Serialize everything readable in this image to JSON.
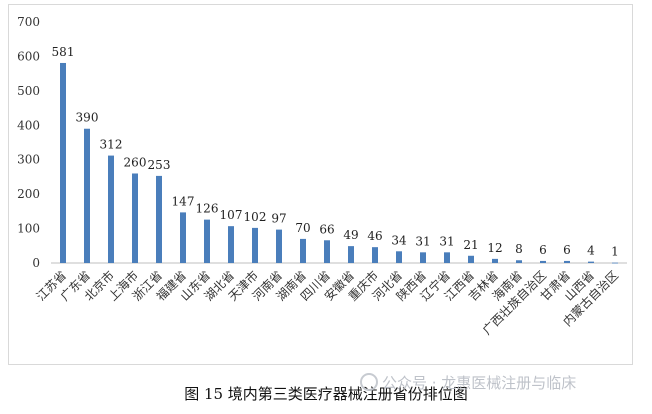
{
  "chart_data": {
    "type": "bar",
    "categories": [
      "江苏省",
      "广东省",
      "北京市",
      "上海市",
      "浙江省",
      "福建省",
      "山东省",
      "湖北省",
      "天津市",
      "河南省",
      "湖南省",
      "四川省",
      "安徽省",
      "重庆市",
      "河北省",
      "陕西省",
      "辽宁省",
      "江西省",
      "吉林省",
      "海南省",
      "广西壮族自治区",
      "甘肃省",
      "山西省",
      "内蒙古自治区"
    ],
    "values": [
      581,
      390,
      312,
      260,
      253,
      147,
      126,
      107,
      102,
      97,
      70,
      66,
      49,
      46,
      34,
      31,
      31,
      21,
      12,
      8,
      6,
      6,
      4,
      1
    ],
    "ylim": [
      0,
      700
    ],
    "yticks": [
      0,
      100,
      200,
      300,
      400,
      500,
      600,
      700
    ],
    "bar_color": "#4a7ebb",
    "grid": false,
    "legend": "none"
  },
  "caption": "图 15  境内第三类医疗器械注册省份排位图",
  "watermark": "公众号 · 龙惠医械注册与临床"
}
